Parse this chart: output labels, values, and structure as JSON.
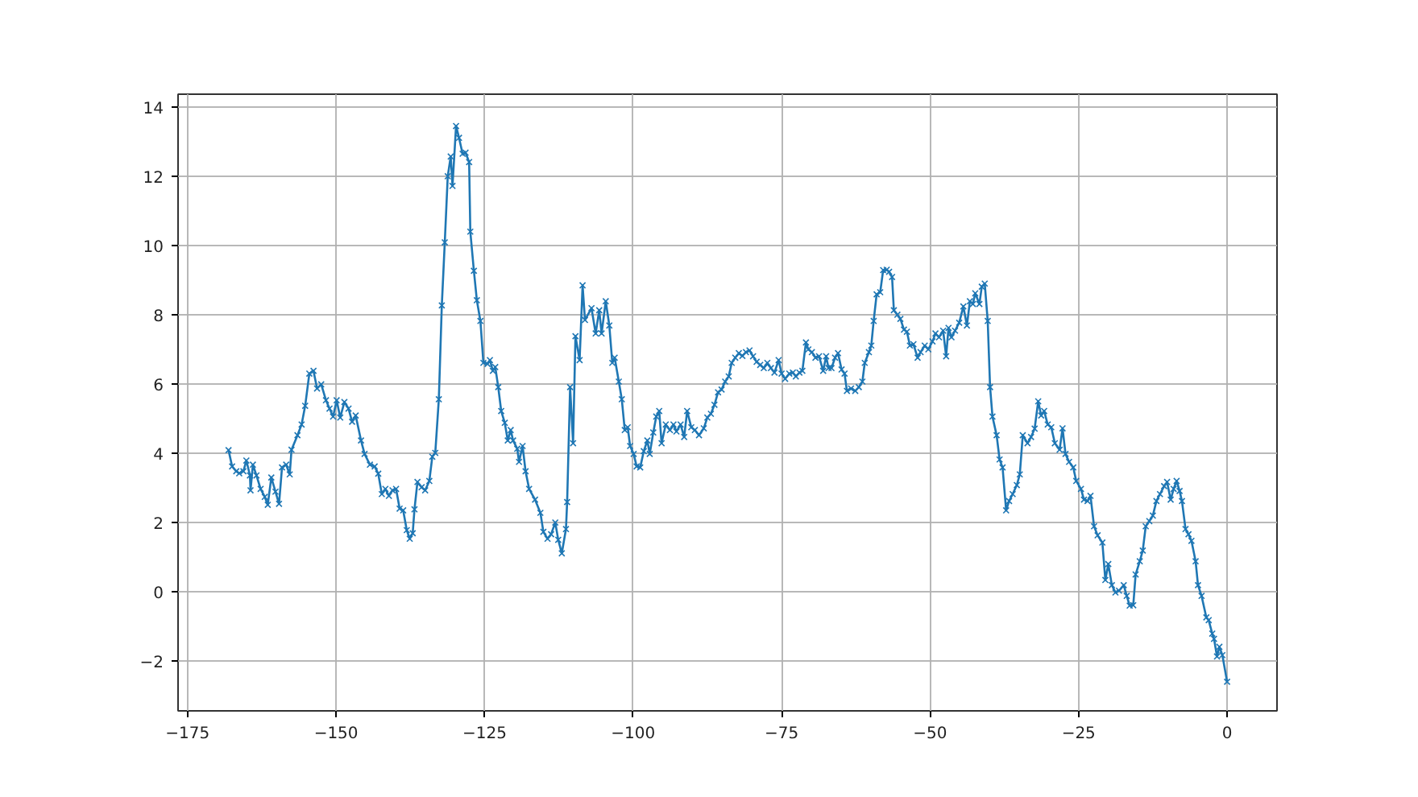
{
  "chart_data": {
    "type": "line",
    "marker": "cross",
    "line_style": "solid",
    "grid": true,
    "xlim": [
      -176.6,
      8.4
    ],
    "ylim": [
      -3.44,
      14.37
    ],
    "xticks": [
      -175,
      -150,
      -125,
      -100,
      -75,
      -50,
      -25,
      0
    ],
    "yticks": [
      -2,
      0,
      2,
      4,
      6,
      8,
      10,
      12,
      14
    ],
    "series": [
      {
        "color": "#1f77b4",
        "x": [
          -168.1,
          -167.5,
          -166.8,
          -166.3,
          -165.6,
          -165.1,
          -164.5,
          -164.4,
          -164.0,
          -163.4,
          -162.7,
          -162.0,
          -161.5,
          -160.9,
          -160.2,
          -159.6,
          -159.1,
          -158.4,
          -157.8,
          -157.5,
          -156.5,
          -155.8,
          -155.2,
          -154.5,
          -153.8,
          -153.2,
          -152.5,
          -151.7,
          -151.1,
          -150.5,
          -149.9,
          -149.3,
          -148.6,
          -147.9,
          -147.3,
          -146.7,
          -145.8,
          -145.2,
          -144.3,
          -143.5,
          -142.9,
          -142.3,
          -141.7,
          -141.1,
          -140.5,
          -139.9,
          -139.3,
          -138.7,
          -138.1,
          -137.6,
          -137.1,
          -136.8,
          -136.3,
          -135.6,
          -135.0,
          -134.3,
          -133.8,
          -133.3,
          -132.7,
          -132.2,
          -131.7,
          -131.2,
          -130.7,
          -130.4,
          -129.8,
          -129.3,
          -128.7,
          -128.2,
          -127.6,
          -127.4,
          -126.8,
          -126.3,
          -125.7,
          -125.2,
          -124.5,
          -124.1,
          -123.6,
          -123.2,
          -122.7,
          -122.2,
          -121.6,
          -121.1,
          -120.6,
          -120.2,
          -119.5,
          -119.2,
          -118.6,
          -118.1,
          -117.5,
          -116.5,
          -115.6,
          -115.1,
          -114.4,
          -113.8,
          -113.1,
          -112.6,
          -112.0,
          -111.3,
          -111.1,
          -110.6,
          -110.1,
          -109.7,
          -109.0,
          -108.5,
          -108.1,
          -107.0,
          -106.3,
          -105.7,
          -105.3,
          -104.6,
          -104.0,
          -103.5,
          -103.1,
          -102.4,
          -101.9,
          -101.4,
          -100.9,
          -100.5,
          -99.9,
          -99.4,
          -98.8,
          -98.2,
          -97.6,
          -97.2,
          -96.6,
          -96.1,
          -95.6,
          -95.2,
          -94.5,
          -93.8,
          -93.2,
          -92.7,
          -92.0,
          -91.4,
          -90.9,
          -90.2,
          -89.6,
          -88.9,
          -88.1,
          -87.5,
          -86.9,
          -86.3,
          -85.7,
          -85.1,
          -84.5,
          -83.9,
          -83.4,
          -82.8,
          -82.2,
          -81.6,
          -81.0,
          -80.4,
          -79.8,
          -79.2,
          -78.6,
          -78.0,
          -77.4,
          -76.8,
          -76.2,
          -75.5,
          -75.0,
          -74.4,
          -73.7,
          -73.1,
          -72.6,
          -72.0,
          -71.5,
          -70.9,
          -70.5,
          -69.9,
          -69.3,
          -68.7,
          -68.0,
          -67.5,
          -67.1,
          -66.6,
          -66.0,
          -65.5,
          -64.9,
          -64.4,
          -64.0,
          -63.3,
          -62.6,
          -62.0,
          -61.4,
          -61.0,
          -60.3,
          -59.9,
          -59.5,
          -59.0,
          -58.4,
          -57.9,
          -57.3,
          -56.9,
          -56.4,
          -56.1,
          -55.5,
          -55.0,
          -54.4,
          -53.9,
          -53.4,
          -52.8,
          -52.1,
          -51.6,
          -50.9,
          -50.3,
          -49.6,
          -49.1,
          -48.5,
          -47.8,
          -47.3,
          -46.9,
          -46.4,
          -45.8,
          -45.1,
          -44.4,
          -43.8,
          -43.3,
          -42.8,
          -42.4,
          -41.7,
          -41.3,
          -40.8,
          -40.3,
          -39.9,
          -39.5,
          -38.8,
          -38.3,
          -37.8,
          -37.2,
          -36.7,
          -36.1,
          -35.4,
          -34.9,
          -34.4,
          -33.6,
          -33.0,
          -32.4,
          -31.8,
          -31.3,
          -30.8,
          -30.2,
          -29.6,
          -29.0,
          -28.2,
          -27.7,
          -27.2,
          -26.6,
          -25.9,
          -25.4,
          -24.6,
          -24.1,
          -23.5,
          -23.0,
          -22.4,
          -21.8,
          -21.0,
          -20.5,
          -20.0,
          -19.4,
          -18.8,
          -18.2,
          -17.4,
          -16.9,
          -16.4,
          -15.8,
          -15.4,
          -14.7,
          -14.2,
          -13.7,
          -13.1,
          -12.5,
          -11.9,
          -11.3,
          -10.6,
          -10.1,
          -9.5,
          -9.0,
          -8.5,
          -8.0,
          -7.6,
          -7.0,
          -6.5,
          -6.0,
          -5.3,
          -4.9,
          -4.3,
          -3.5,
          -3.1,
          -2.5,
          -2.2,
          -1.7,
          -1.3,
          -0.8,
          0.0
        ],
        "values": [
          4.09,
          3.62,
          3.48,
          3.42,
          3.48,
          3.79,
          3.36,
          2.93,
          3.67,
          3.36,
          2.97,
          2.74,
          2.51,
          3.3,
          2.89,
          2.54,
          3.59,
          3.67,
          3.39,
          4.1,
          4.52,
          4.83,
          5.37,
          6.3,
          6.38,
          5.87,
          5.99,
          5.53,
          5.29,
          5.06,
          5.53,
          5.03,
          5.48,
          5.29,
          4.91,
          5.09,
          4.37,
          3.98,
          3.67,
          3.62,
          3.41,
          2.82,
          2.97,
          2.77,
          2.93,
          2.97,
          2.4,
          2.35,
          1.78,
          1.53,
          1.69,
          2.38,
          3.17,
          3.02,
          2.93,
          3.2,
          3.9,
          4.01,
          5.56,
          8.27,
          10.09,
          12.0,
          12.57,
          11.72,
          13.45,
          13.11,
          12.65,
          12.68,
          12.41,
          10.4,
          9.27,
          8.42,
          7.82,
          6.61,
          6.58,
          6.69,
          6.38,
          6.49,
          5.91,
          5.22,
          4.88,
          4.37,
          4.67,
          4.37,
          4.13,
          3.75,
          4.21,
          3.48,
          2.97,
          2.66,
          2.28,
          1.73,
          1.53,
          1.66,
          2.0,
          1.5,
          1.11,
          1.81,
          2.59,
          5.91,
          4.29,
          7.38,
          6.69,
          8.85,
          7.85,
          8.19,
          7.46,
          8.13,
          7.46,
          8.39,
          7.69,
          6.61,
          6.76,
          6.07,
          5.56,
          4.67,
          4.75,
          4.21,
          3.98,
          3.62,
          3.59,
          4.06,
          4.37,
          3.98,
          4.6,
          5.06,
          5.22,
          4.29,
          4.83,
          4.67,
          4.83,
          4.63,
          4.83,
          4.47,
          5.22,
          4.75,
          4.67,
          4.52,
          4.72,
          5.03,
          5.14,
          5.4,
          5.76,
          5.84,
          6.07,
          6.22,
          6.61,
          6.76,
          6.89,
          6.81,
          6.92,
          6.97,
          6.8,
          6.64,
          6.55,
          6.46,
          6.61,
          6.46,
          6.33,
          6.69,
          6.3,
          6.15,
          6.3,
          6.33,
          6.22,
          6.33,
          6.38,
          7.2,
          7.0,
          6.92,
          6.76,
          6.8,
          6.38,
          6.8,
          6.46,
          6.46,
          6.76,
          6.89,
          6.42,
          6.3,
          5.8,
          5.87,
          5.8,
          5.91,
          6.07,
          6.61,
          6.92,
          7.11,
          7.82,
          8.59,
          8.65,
          9.29,
          9.3,
          9.24,
          9.09,
          8.13,
          8.0,
          7.88,
          7.57,
          7.51,
          7.11,
          7.15,
          6.76,
          6.92,
          7.11,
          7.0,
          7.23,
          7.46,
          7.35,
          7.54,
          6.8,
          7.62,
          7.35,
          7.54,
          7.77,
          8.24,
          7.69,
          8.39,
          8.31,
          8.62,
          8.31,
          8.81,
          8.9,
          7.82,
          5.91,
          5.06,
          4.52,
          3.82,
          3.59,
          2.35,
          2.62,
          2.82,
          3.08,
          3.39,
          4.52,
          4.29,
          4.47,
          4.71,
          5.5,
          5.09,
          5.22,
          4.83,
          4.75,
          4.29,
          4.1,
          4.72,
          3.98,
          3.75,
          3.59,
          3.2,
          2.97,
          2.66,
          2.62,
          2.77,
          1.89,
          1.63,
          1.42,
          0.34,
          0.8,
          0.19,
          -0.02,
          0.03,
          0.19,
          -0.12,
          -0.4,
          -0.39,
          0.5,
          0.88,
          1.19,
          1.89,
          2.04,
          2.2,
          2.62,
          2.82,
          3.05,
          3.17,
          2.66,
          2.97,
          3.2,
          2.91,
          2.62,
          1.81,
          1.66,
          1.47,
          0.88,
          0.19,
          -0.12,
          -0.74,
          -0.82,
          -1.21,
          -1.36,
          -1.87,
          -1.59,
          -1.83,
          -2.6
        ]
      }
    ]
  }
}
